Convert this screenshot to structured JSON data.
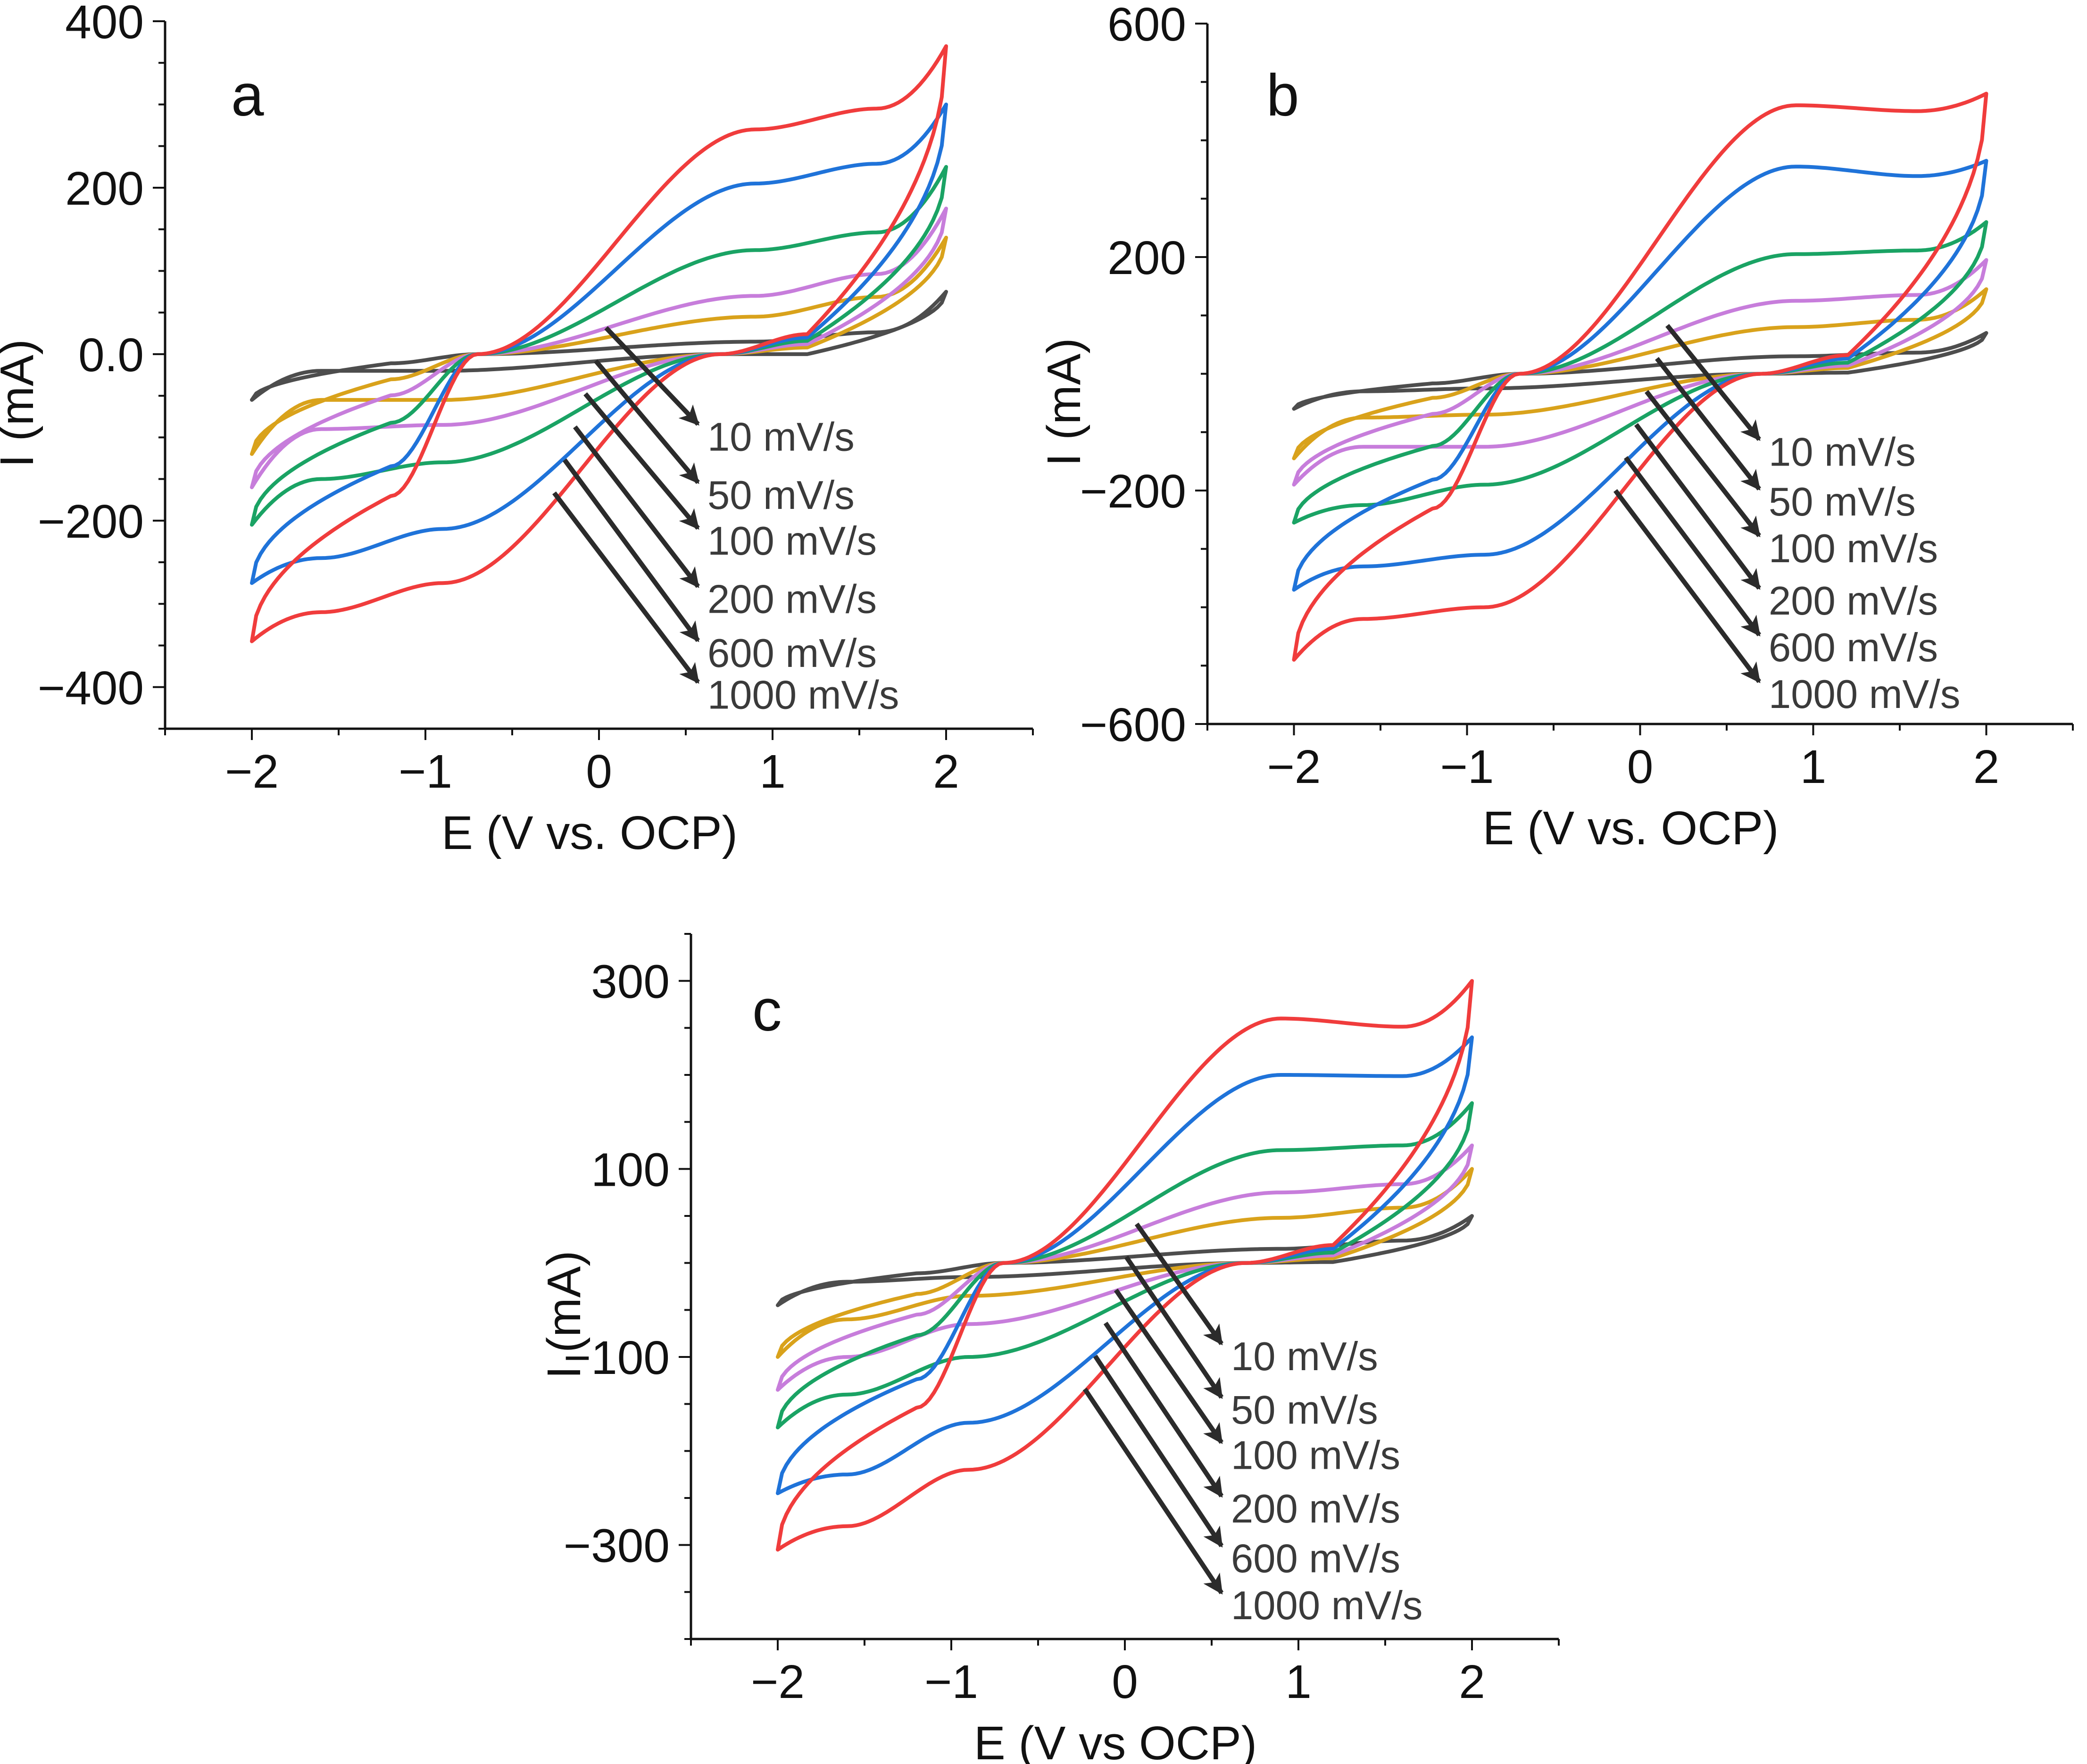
{
  "figure": {
    "description_free": true
  },
  "chart_data": [
    {
      "panel": "a",
      "type": "line",
      "xlabel": "E (V vs. OCP)",
      "ylabel": "I (mA)",
      "xlim": [
        -2.5,
        2.5
      ],
      "ylim": [
        -450,
        400
      ],
      "xticks": [
        -2,
        -1,
        0,
        1,
        2
      ],
      "xtick_labels": [
        "−2",
        "−1",
        "0",
        "1",
        "2"
      ],
      "yticks": [
        -400,
        -200,
        0,
        200,
        400
      ],
      "ytick_labels": [
        "−400",
        "−200",
        "0.0",
        "200",
        "400"
      ],
      "arrow_label_y": [
        -100,
        -170,
        -225,
        -295,
        -360,
        -410
      ],
      "series": [
        {
          "name": "10 mV/s",
          "color": "#4d4d4d",
          "start_top": -55,
          "end_top": 75,
          "end_bottom": 0,
          "start_bottom": -20,
          "back_level": -20,
          "back_mid": -10,
          "top_level": 10,
          "anodic_peak": 15,
          "cathodic_peak": -20
        },
        {
          "name": "50 mV/s",
          "color": "#d9a21b",
          "start_top": -120,
          "end_top": 140,
          "end_bottom": 40,
          "start_bottom": -55,
          "back_level": -55,
          "back_mid": -35,
          "top_level": 45,
          "anodic_peak": 45,
          "cathodic_peak": -55
        },
        {
          "name": "100 mV/s",
          "color": "#c77ddb",
          "start_top": -160,
          "end_top": 175,
          "end_bottom": 60,
          "start_bottom": -90,
          "back_level": -90,
          "back_mid": -70,
          "top_level": 70,
          "anodic_peak": 70,
          "cathodic_peak": -85
        },
        {
          "name": "200 mV/s",
          "color": "#1aa364",
          "start_top": -205,
          "end_top": 225,
          "end_bottom": 80,
          "start_bottom": -150,
          "back_level": -150,
          "back_mid": -125,
          "top_level": 120,
          "anodic_peak": 125,
          "cathodic_peak": -130
        },
        {
          "name": "600 mV/s",
          "color": "#1f73d9",
          "start_top": -275,
          "end_top": 300,
          "end_bottom": 100,
          "start_bottom": -245,
          "back_level": -245,
          "back_mid": -210,
          "top_level": 205,
          "anodic_peak": 205,
          "cathodic_peak": -210
        },
        {
          "name": "1000 mV/s",
          "color": "#f03c3c",
          "start_top": -345,
          "end_top": 370,
          "end_bottom": 120,
          "start_bottom": -310,
          "back_level": -310,
          "back_mid": -275,
          "top_level": 270,
          "anodic_peak": 270,
          "cathodic_peak": -275
        }
      ]
    },
    {
      "panel": "b",
      "type": "line",
      "xlabel": "E (V vs. OCP)",
      "ylabel": "I (mA)",
      "xlim": [
        -2.5,
        2.5
      ],
      "ylim": [
        -600,
        600
      ],
      "xticks": [
        -2,
        -1,
        0,
        1,
        2
      ],
      "xtick_labels": [
        "−2",
        "−1",
        "0",
        "1",
        "2"
      ],
      "yticks": [
        -600,
        -200,
        200,
        600
      ],
      "ytick_labels": [
        "−600",
        "−200",
        "200",
        "600"
      ],
      "arrow_label_y": [
        -135,
        -220,
        -300,
        -390,
        -470,
        -550
      ],
      "series": [
        {
          "name": "10 mV/s",
          "color": "#4d4d4d",
          "start_top": -60,
          "end_top": 70,
          "end_bottom": 10,
          "start_bottom": -30,
          "back_level": -30,
          "back_mid": -20,
          "top_level": 25,
          "anodic_peak": 30,
          "cathodic_peak": -25
        },
        {
          "name": "50 mV/s",
          "color": "#d9a21b",
          "start_top": -145,
          "end_top": 145,
          "end_bottom": 50,
          "start_bottom": -75,
          "back_level": -75,
          "back_mid": -55,
          "top_level": 75,
          "anodic_peak": 80,
          "cathodic_peak": -70
        },
        {
          "name": "100 mV/s",
          "color": "#c77ddb",
          "start_top": -190,
          "end_top": 195,
          "end_bottom": 70,
          "start_bottom": -125,
          "back_level": -125,
          "back_mid": -110,
          "top_level": 115,
          "anodic_peak": 125,
          "cathodic_peak": -125
        },
        {
          "name": "200 mV/s",
          "color": "#1aa364",
          "start_top": -255,
          "end_top": 260,
          "end_bottom": 95,
          "start_bottom": -225,
          "back_level": -225,
          "back_mid": -190,
          "top_level": 195,
          "anodic_peak": 205,
          "cathodic_peak": -190
        },
        {
          "name": "600 mV/s",
          "color": "#1f73d9",
          "start_top": -370,
          "end_top": 365,
          "end_bottom": 130,
          "start_bottom": -370,
          "back_level": -330,
          "back_mid": -310,
          "top_level": 330,
          "anodic_peak": 355,
          "cathodic_peak": -310
        },
        {
          "name": "1000 mV/s",
          "color": "#f03c3c",
          "start_top": -490,
          "end_top": 480,
          "end_bottom": 160,
          "start_bottom": -475,
          "back_level": -420,
          "back_mid": -395,
          "top_level": 440,
          "anodic_peak": 460,
          "cathodic_peak": -400
        }
      ]
    },
    {
      "panel": "c",
      "type": "line",
      "xlabel": "E (V vs OCP)",
      "ylabel": "I (mA)",
      "xlim": [
        -2.5,
        2.5
      ],
      "ylim": [
        -400,
        350
      ],
      "xticks": [
        -2,
        -1,
        0,
        1,
        2
      ],
      "xtick_labels": [
        "−2",
        "−1",
        "0",
        "1",
        "2"
      ],
      "yticks": [
        -300,
        -100,
        100,
        300
      ],
      "ytick_labels": [
        "−300",
        "−100",
        "100",
        "300"
      ],
      "arrow_label_y": [
        -100,
        -157,
        -205,
        -262,
        -315,
        -365
      ],
      "series": [
        {
          "name": "10 mV/s",
          "color": "#4d4d4d",
          "start_top": -45,
          "end_top": 50,
          "end_bottom": 5,
          "start_bottom": -20,
          "back_level": -20,
          "back_mid": -10,
          "top_level": 15,
          "anodic_peak": 15,
          "cathodic_peak": -15
        },
        {
          "name": "50 mV/s",
          "color": "#d9a21b",
          "start_top": -100,
          "end_top": 100,
          "end_bottom": 25,
          "start_bottom": -60,
          "back_level": -60,
          "back_mid": -40,
          "top_level": 45,
          "anodic_peak": 48,
          "cathodic_peak": -35
        },
        {
          "name": "100 mV/s",
          "color": "#c77ddb",
          "start_top": -135,
          "end_top": 125,
          "end_bottom": 40,
          "start_bottom": -100,
          "back_level": -100,
          "back_mid": -75,
          "top_level": 70,
          "anodic_peak": 75,
          "cathodic_peak": -65
        },
        {
          "name": "200 mV/s",
          "color": "#1aa364",
          "start_top": -175,
          "end_top": 170,
          "end_bottom": 55,
          "start_bottom": -140,
          "back_level": -140,
          "back_mid": -115,
          "top_level": 110,
          "anodic_peak": 120,
          "cathodic_peak": -100
        },
        {
          "name": "600 mV/s",
          "color": "#1f73d9",
          "start_top": -245,
          "end_top": 240,
          "end_bottom": 75,
          "start_bottom": -225,
          "back_level": -225,
          "back_mid": -175,
          "top_level": 185,
          "anodic_peak": 200,
          "cathodic_peak": -170
        },
        {
          "name": "1000 mV/s",
          "color": "#f03c3c",
          "start_top": -305,
          "end_top": 300,
          "end_bottom": 95,
          "start_bottom": -280,
          "back_level": -280,
          "back_mid": -225,
          "top_level": 235,
          "anodic_peak": 260,
          "cathodic_peak": -220
        }
      ]
    }
  ]
}
